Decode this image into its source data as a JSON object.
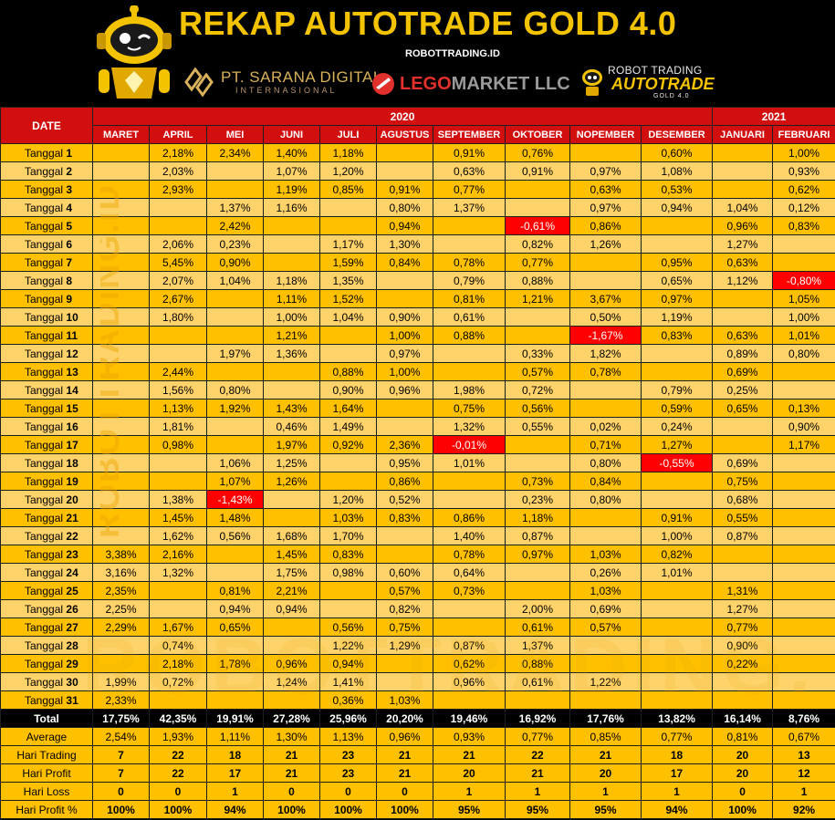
{
  "header": {
    "title": "REKAP AUTOTRADE GOLD 4.0",
    "website": "ROBOTTRADING.ID",
    "logo_pt_name": "PT. SARANA DIGITAL",
    "logo_pt_sub": "INTERNASIONAL",
    "logo_lego_word1": "LEGO",
    "logo_lego_word2": "MARKET LLC",
    "logo_rt_line1": "ROBOT TRADING",
    "logo_rt_line2": "AUTOTRADE",
    "logo_rt_line3": "GOLD 4.0",
    "watermark": "ROBOTTRADING.ID"
  },
  "table": {
    "date_header": "DATE",
    "years": [
      {
        "label": "2020"
      },
      {
        "label": "2021"
      }
    ],
    "months": [
      "MARET",
      "APRIL",
      "MEI",
      "JUNI",
      "JULI",
      "AGUSTUS",
      "SEPTEMBER",
      "OKTOBER",
      "NOPEMBER",
      "DESEMBER",
      "JANUARI",
      "FEBRUARI"
    ],
    "day_prefix": "Tanggal",
    "rows": [
      {
        "day": "1",
        "v": [
          "",
          "2,18%",
          "2,34%",
          "1,40%",
          "1,18%",
          "",
          "0,91%",
          "0,76%",
          "",
          "0,60%",
          "",
          "1,00%"
        ]
      },
      {
        "day": "2",
        "v": [
          "",
          "2,03%",
          "",
          "1,07%",
          "1,20%",
          "",
          "0,63%",
          "0,91%",
          "0,97%",
          "1,08%",
          "",
          "0,93%"
        ]
      },
      {
        "day": "3",
        "v": [
          "",
          "2,93%",
          "",
          "1,19%",
          "0,85%",
          "0,91%",
          "0,77%",
          "",
          "0,63%",
          "0,53%",
          "",
          "0,62%"
        ]
      },
      {
        "day": "4",
        "v": [
          "",
          "",
          "1,37%",
          "1,16%",
          "",
          "0,80%",
          "1,37%",
          "",
          "0,97%",
          "0,94%",
          "1,04%",
          "0,12%"
        ]
      },
      {
        "day": "5",
        "v": [
          "",
          "",
          "2,42%",
          "",
          "",
          "0,94%",
          "",
          "-0,61%",
          "0,86%",
          "",
          "0,96%",
          "0,83%"
        ]
      },
      {
        "day": "6",
        "v": [
          "",
          "2,06%",
          "0,23%",
          "",
          "1,17%",
          "1,30%",
          "",
          "0,82%",
          "1,26%",
          "",
          "1,27%",
          ""
        ]
      },
      {
        "day": "7",
        "v": [
          "",
          "5,45%",
          "0,90%",
          "",
          "1,59%",
          "0,84%",
          "0,78%",
          "0,77%",
          "",
          "0,95%",
          "0,63%",
          ""
        ]
      },
      {
        "day": "8",
        "v": [
          "",
          "2,07%",
          "1,04%",
          "1,18%",
          "1,35%",
          "",
          "0,79%",
          "0,88%",
          "",
          "0,65%",
          "1,12%",
          "-0,80%"
        ]
      },
      {
        "day": "9",
        "v": [
          "",
          "2,67%",
          "",
          "1,11%",
          "1,52%",
          "",
          "0,81%",
          "1,21%",
          "3,67%",
          "0,97%",
          "",
          "1,05%"
        ]
      },
      {
        "day": "10",
        "v": [
          "",
          "1,80%",
          "",
          "1,00%",
          "1,04%",
          "0,90%",
          "0,61%",
          "",
          "0,50%",
          "1,19%",
          "",
          "1,00%"
        ]
      },
      {
        "day": "11",
        "v": [
          "",
          "",
          "",
          "1,21%",
          "",
          "1,00%",
          "0,88%",
          "",
          "-1,67%",
          "0,83%",
          "0,63%",
          "1,01%"
        ]
      },
      {
        "day": "12",
        "v": [
          "",
          "",
          "1,97%",
          "1,36%",
          "",
          "0,97%",
          "",
          "0,33%",
          "1,82%",
          "",
          "0,89%",
          "0,80%"
        ]
      },
      {
        "day": "13",
        "v": [
          "",
          "2,44%",
          "",
          "",
          "0,88%",
          "1,00%",
          "",
          "0,57%",
          "0,78%",
          "",
          "0,69%",
          ""
        ]
      },
      {
        "day": "14",
        "v": [
          "",
          "1,56%",
          "0,80%",
          "",
          "0,90%",
          "0,96%",
          "1,98%",
          "0,72%",
          "",
          "0,79%",
          "0,25%",
          ""
        ]
      },
      {
        "day": "15",
        "v": [
          "",
          "1,13%",
          "1,92%",
          "1,43%",
          "1,64%",
          "",
          "0,75%",
          "0,56%",
          "",
          "0,59%",
          "0,65%",
          "0,13%"
        ]
      },
      {
        "day": "16",
        "v": [
          "",
          "1,81%",
          "",
          "0,46%",
          "1,49%",
          "",
          "1,32%",
          "0,55%",
          "0,02%",
          "0,24%",
          "",
          "0,90%"
        ]
      },
      {
        "day": "17",
        "v": [
          "",
          "0,98%",
          "",
          "1,97%",
          "0,92%",
          "2,36%",
          "-0,01%",
          "",
          "0,71%",
          "1,27%",
          "",
          "1,17%"
        ]
      },
      {
        "day": "18",
        "v": [
          "",
          "",
          "1,06%",
          "1,25%",
          "",
          "0,95%",
          "1,01%",
          "",
          "0,80%",
          "-0,55%",
          "0,69%",
          ""
        ]
      },
      {
        "day": "19",
        "v": [
          "",
          "",
          "1,07%",
          "1,26%",
          "",
          "0,86%",
          "",
          "0,73%",
          "0,84%",
          "",
          "0,75%",
          ""
        ]
      },
      {
        "day": "20",
        "v": [
          "",
          "1,38%",
          "-1,43%",
          "",
          "1,20%",
          "0,52%",
          "",
          "0,23%",
          "0,80%",
          "",
          "0,68%",
          ""
        ]
      },
      {
        "day": "21",
        "v": [
          "",
          "1,45%",
          "1,48%",
          "",
          "1,03%",
          "0,83%",
          "0,86%",
          "1,18%",
          "",
          "0,91%",
          "0,55%",
          ""
        ]
      },
      {
        "day": "22",
        "v": [
          "",
          "1,62%",
          "0,56%",
          "1,68%",
          "1,70%",
          "",
          "1,40%",
          "0,87%",
          "",
          "1,00%",
          "0,87%",
          ""
        ]
      },
      {
        "day": "23",
        "v": [
          "3,38%",
          "2,16%",
          "",
          "1,45%",
          "0,83%",
          "",
          "0,78%",
          "0,97%",
          "1,03%",
          "0,82%",
          "",
          ""
        ]
      },
      {
        "day": "24",
        "v": [
          "3,16%",
          "1,32%",
          "",
          "1,75%",
          "0,98%",
          "0,60%",
          "0,64%",
          "",
          "0,26%",
          "1,01%",
          "",
          ""
        ]
      },
      {
        "day": "25",
        "v": [
          "2,35%",
          "",
          "0,81%",
          "2,21%",
          "",
          "0,57%",
          "0,73%",
          "",
          "1,03%",
          "",
          "1,31%",
          ""
        ]
      },
      {
        "day": "26",
        "v": [
          "2,25%",
          "",
          "0,94%",
          "0,94%",
          "",
          "0,82%",
          "",
          "2,00%",
          "0,69%",
          "",
          "1,27%",
          ""
        ]
      },
      {
        "day": "27",
        "v": [
          "2,29%",
          "1,67%",
          "0,65%",
          "",
          "0,56%",
          "0,75%",
          "",
          "0,61%",
          "0,57%",
          "",
          "0,77%",
          ""
        ]
      },
      {
        "day": "28",
        "v": [
          "",
          "0,74%",
          "",
          "",
          "1,22%",
          "1,29%",
          "0,87%",
          "1,37%",
          "",
          "",
          "0,90%",
          ""
        ]
      },
      {
        "day": "29",
        "v": [
          "",
          "2,18%",
          "1,78%",
          "0,96%",
          "0,94%",
          "",
          "0,62%",
          "0,88%",
          "",
          "",
          "0,22%",
          ""
        ]
      },
      {
        "day": "30",
        "v": [
          "1,99%",
          "0,72%",
          "",
          "1,24%",
          "1,41%",
          "",
          "0,96%",
          "0,61%",
          "1,22%",
          "",
          "",
          ""
        ]
      },
      {
        "day": "31",
        "v": [
          "2,33%",
          "",
          "",
          "",
          "0,36%",
          "1,03%",
          "",
          "",
          "",
          "",
          "",
          ""
        ]
      }
    ],
    "summary": [
      {
        "label": "Total",
        "type": "total",
        "v": [
          "17,75%",
          "42,35%",
          "19,91%",
          "27,28%",
          "25,96%",
          "20,20%",
          "19,46%",
          "16,92%",
          "17,76%",
          "13,82%",
          "16,14%",
          "8,76%"
        ]
      },
      {
        "label": "Average",
        "type": "sum",
        "v": [
          "2,54%",
          "1,93%",
          "1,11%",
          "1,30%",
          "1,13%",
          "0,96%",
          "0,93%",
          "0,77%",
          "0,85%",
          "0,77%",
          "0,81%",
          "0,67%"
        ]
      },
      {
        "label": "Hari Trading",
        "type": "sum",
        "v": [
          "7",
          "22",
          "18",
          "21",
          "23",
          "21",
          "21",
          "22",
          "21",
          "18",
          "20",
          "13"
        ]
      },
      {
        "label": "Hari Profit",
        "type": "sum",
        "v": [
          "7",
          "22",
          "17",
          "21",
          "23",
          "21",
          "20",
          "21",
          "20",
          "17",
          "20",
          "12"
        ]
      },
      {
        "label": "Hari Loss",
        "type": "sum",
        "v": [
          "0",
          "0",
          "1",
          "0",
          "0",
          "0",
          "1",
          "1",
          "1",
          "1",
          "0",
          "1"
        ]
      },
      {
        "label": "Hari Profit %",
        "type": "sum",
        "v": [
          "100%",
          "100%",
          "94%",
          "100%",
          "100%",
          "100%",
          "95%",
          "95%",
          "95%",
          "94%",
          "100%",
          "92%"
        ]
      }
    ]
  },
  "colors": {
    "header_red": "#d20f0f",
    "cell_gold": "#ffc000",
    "cell_light": "#ffd36a",
    "negative_red": "#ff0000",
    "title_gold": "#f3c300"
  }
}
